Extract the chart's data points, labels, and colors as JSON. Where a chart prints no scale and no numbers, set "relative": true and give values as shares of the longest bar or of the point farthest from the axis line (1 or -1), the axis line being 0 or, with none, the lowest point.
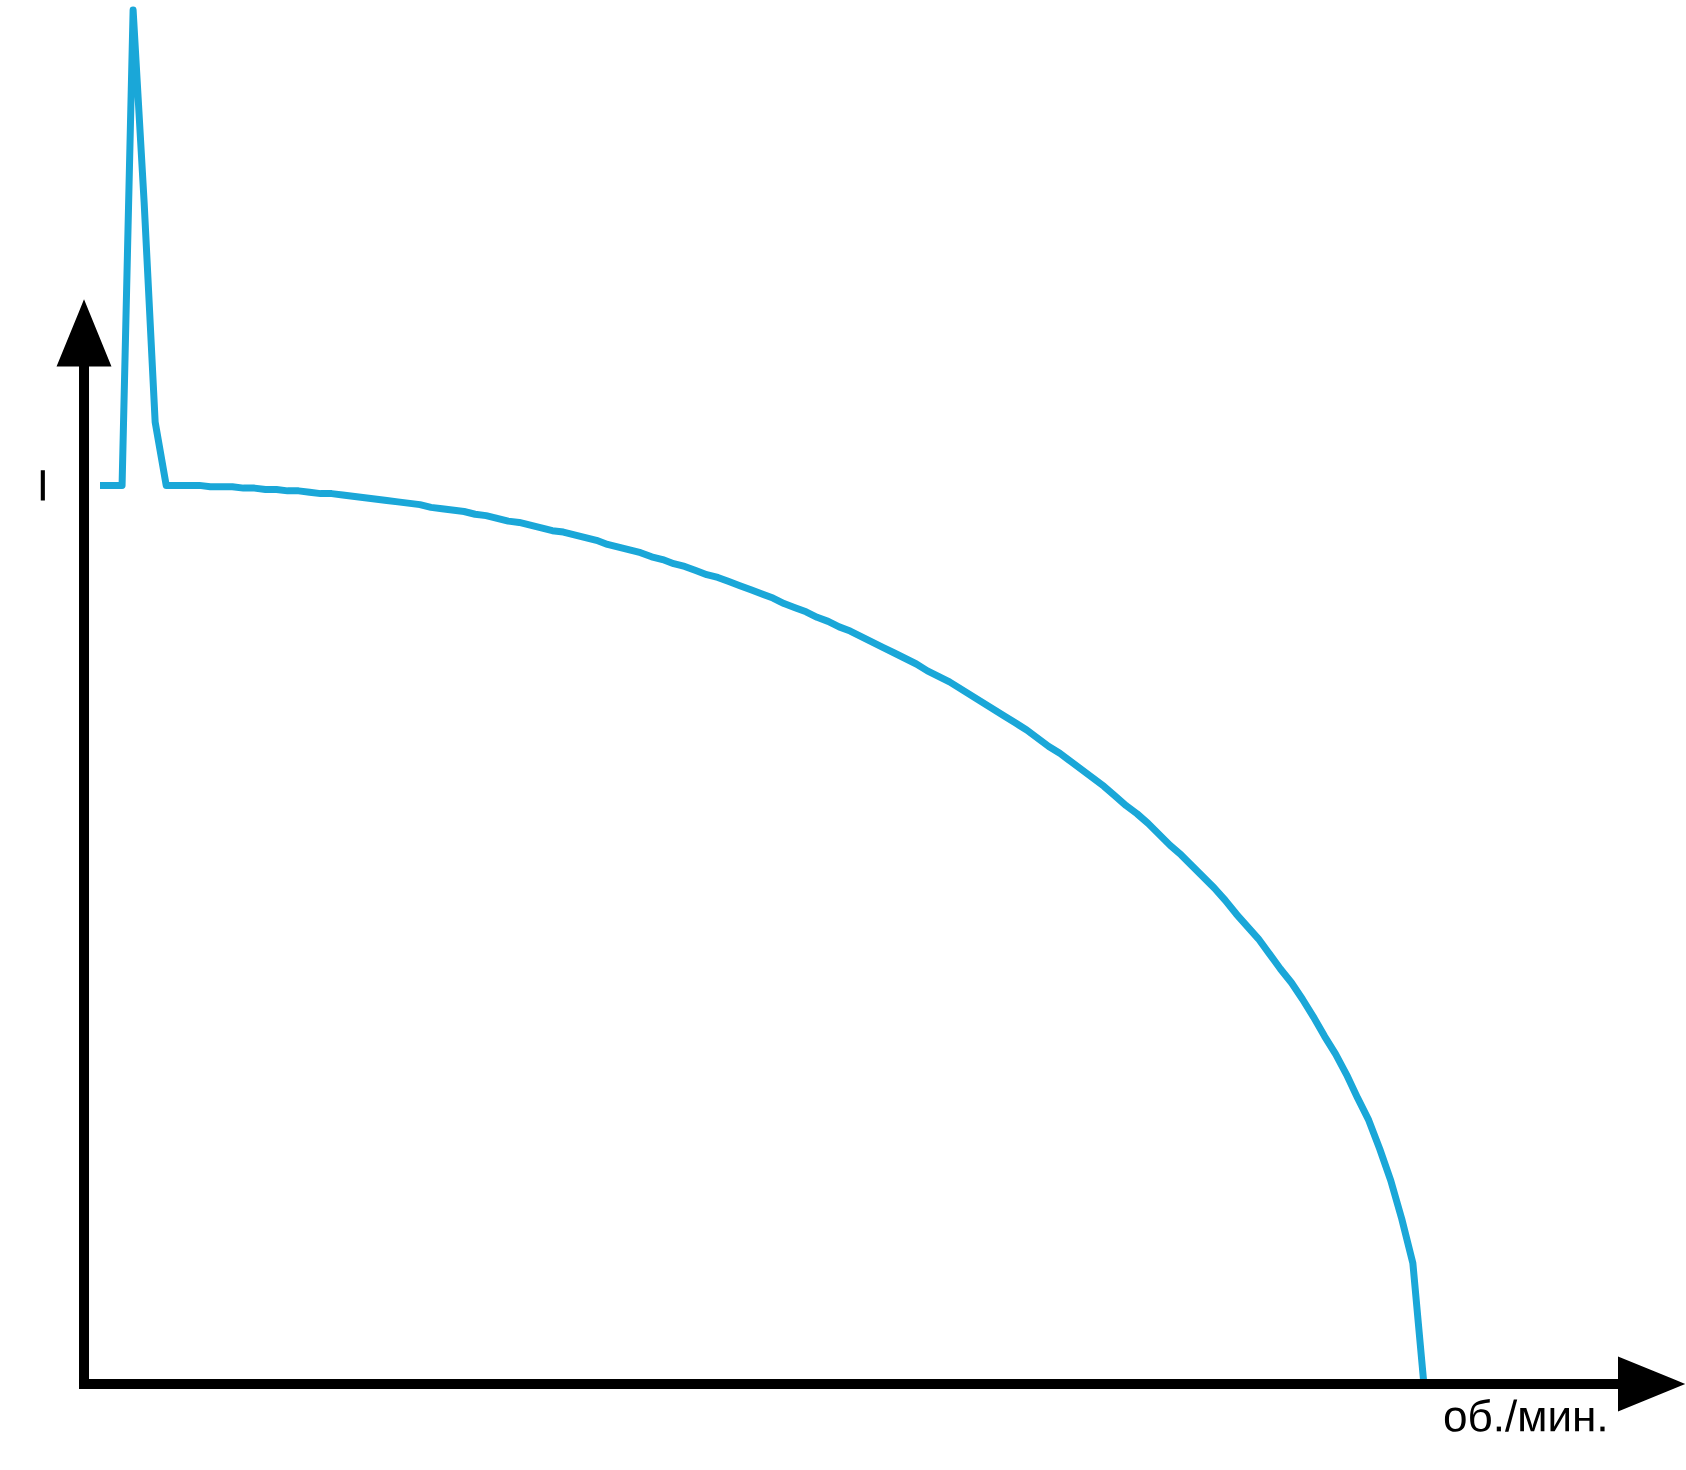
{
  "chart_data": {
    "type": "line",
    "relative": true,
    "xlabel": "об./мин.",
    "ylabel": "I",
    "color": "#1aa7d8",
    "categories": [
      null,
      null,
      null,
      null,
      null,
      null,
      null,
      null,
      null,
      null,
      null,
      null,
      null,
      null,
      null,
      null,
      null,
      null,
      null,
      null,
      null,
      null,
      null,
      null,
      null,
      null,
      null,
      null,
      null,
      null,
      null,
      null,
      null,
      null,
      null,
      null,
      null,
      null,
      null,
      null,
      null,
      null,
      null,
      null,
      null,
      null,
      null,
      null,
      null,
      null,
      null,
      null,
      null,
      null,
      null,
      null,
      null,
      null,
      null,
      null,
      null,
      null,
      null,
      null,
      null,
      null,
      null,
      null,
      null,
      null,
      null,
      null,
      null,
      null,
      null,
      null,
      null,
      null,
      null,
      null,
      null,
      null,
      null,
      null,
      null,
      null,
      null,
      null,
      null,
      null,
      null,
      null,
      null,
      null,
      null,
      null,
      null,
      null,
      null,
      null,
      null,
      null,
      null,
      null,
      null,
      null,
      null,
      null,
      null,
      null,
      null,
      null,
      null,
      null,
      null,
      null,
      null,
      null,
      null,
      null,
      null
    ],
    "values": [
      0.654,
      0.654,
      0.654,
      1,
      0.86,
      0.7,
      0.654,
      0.654,
      0.654,
      0.654,
      0.653,
      0.653,
      0.653,
      0.652,
      0.652,
      0.651,
      0.651,
      0.65,
      0.65,
      0.649,
      0.648,
      0.648,
      0.647,
      0.646,
      0.645,
      0.644,
      0.643,
      0.642,
      0.641,
      0.64,
      0.638,
      0.637,
      0.636,
      0.635,
      0.633,
      0.632,
      0.63,
      0.628,
      0.627,
      0.625,
      0.623,
      0.621,
      0.62,
      0.618,
      0.616,
      0.614,
      0.611,
      0.609,
      0.607,
      0.605,
      0.602,
      0.6,
      0.597,
      0.595,
      0.592,
      0.589,
      0.587,
      0.584,
      0.581,
      0.578,
      0.575,
      0.572,
      0.568,
      0.565,
      0.562,
      0.558,
      0.555,
      0.551,
      0.548,
      0.544,
      0.54,
      0.536,
      0.532,
      0.528,
      0.524,
      0.519,
      0.515,
      0.511,
      0.506,
      0.501,
      0.496,
      0.491,
      0.486,
      0.481,
      0.476,
      0.47,
      0.464,
      0.459,
      0.453,
      0.447,
      0.441,
      0.435,
      0.428,
      0.421,
      0.415,
      0.408,
      0.4,
      0.392,
      0.385,
      0.377,
      0.369,
      0.361,
      0.352,
      0.342,
      0.333,
      0.324,
      0.313,
      0.302,
      0.292,
      0.28,
      0.267,
      0.253,
      0.24,
      0.225,
      0.208,
      0.192,
      0.171,
      0.148,
      0.12,
      0.088,
      0
    ]
  }
}
